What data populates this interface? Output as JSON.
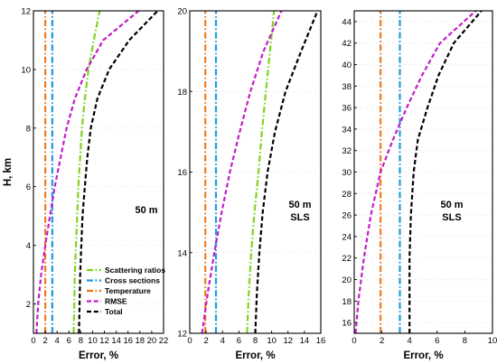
{
  "chart_data": [
    {
      "type": "line",
      "xlabel": "Error, %",
      "ylabel": "H, km",
      "xlim": [
        0,
        22
      ],
      "ylim": [
        1,
        12
      ],
      "xticks": [
        0,
        2,
        4,
        6,
        8,
        10,
        12,
        14,
        16,
        18,
        20,
        22
      ],
      "yticks": [
        2,
        4,
        6,
        8,
        10,
        12
      ],
      "annotation": [
        "50 m"
      ],
      "legend": {
        "position": "bottom-right",
        "entries": [
          "Scattering ratios",
          "Cross sections",
          "Temperature",
          "RMSE",
          "Total"
        ]
      },
      "series": [
        {
          "name": "Scattering ratios",
          "color": "#7FD41E",
          "dash": "dashdot",
          "points": [
            [
              6.8,
              1
            ],
            [
              6.9,
              2
            ],
            [
              7.0,
              3
            ],
            [
              7.2,
              4
            ],
            [
              7.4,
              5
            ],
            [
              7.6,
              6
            ],
            [
              7.9,
              7
            ],
            [
              8.2,
              8
            ],
            [
              8.7,
              9
            ],
            [
              9.3,
              10
            ],
            [
              10.2,
              11
            ],
            [
              11.2,
              12
            ]
          ]
        },
        {
          "name": "Cross sections",
          "color": "#1E9BE0",
          "dash": "dashdot",
          "points": [
            [
              3.2,
              1
            ],
            [
              3.2,
              12
            ]
          ]
        },
        {
          "name": "Temperature",
          "color": "#F07A1E",
          "dash": "dashdot",
          "points": [
            [
              2.0,
              1
            ],
            [
              2.0,
              12
            ]
          ]
        },
        {
          "name": "RMSE",
          "color": "#C21EC8",
          "dash": "dash",
          "points": [
            [
              0.5,
              1
            ],
            [
              0.8,
              2
            ],
            [
              1.3,
              3
            ],
            [
              2.0,
              4
            ],
            [
              2.8,
              5
            ],
            [
              3.6,
              6
            ],
            [
              4.6,
              7
            ],
            [
              5.6,
              8
            ],
            [
              7.0,
              9
            ],
            [
              9.0,
              10
            ],
            [
              11.8,
              11
            ],
            [
              17.8,
              12
            ]
          ]
        },
        {
          "name": "Total",
          "color": "#000000",
          "dash": "dash",
          "points": [
            [
              7.7,
              1
            ],
            [
              7.8,
              2
            ],
            [
              7.9,
              3
            ],
            [
              8.1,
              4
            ],
            [
              8.3,
              5
            ],
            [
              8.7,
              6
            ],
            [
              9.1,
              7
            ],
            [
              9.7,
              8
            ],
            [
              10.8,
              9
            ],
            [
              12.8,
              10
            ],
            [
              16.2,
              11
            ],
            [
              21.0,
              12
            ]
          ]
        }
      ]
    },
    {
      "type": "line",
      "xlabel": "Error, %",
      "ylabel": "",
      "xlim": [
        0,
        16
      ],
      "ylim": [
        12,
        20
      ],
      "xticks": [
        0,
        2,
        4,
        6,
        8,
        10,
        12,
        14,
        16
      ],
      "yticks": [
        12,
        14,
        16,
        18,
        20
      ],
      "annotation": [
        "50 m",
        "SLS"
      ],
      "series": [
        {
          "name": "Scattering ratios",
          "color": "#7FD41E",
          "dash": "dashdot",
          "points": [
            [
              7.0,
              12
            ],
            [
              7.2,
              13
            ],
            [
              7.5,
              14
            ],
            [
              7.9,
              15
            ],
            [
              8.4,
              16
            ],
            [
              8.8,
              17
            ],
            [
              9.3,
              18
            ],
            [
              9.8,
              19
            ],
            [
              10.3,
              20
            ]
          ]
        },
        {
          "name": "Cross sections",
          "color": "#1E9BE0",
          "dash": "dashdot",
          "points": [
            [
              3.2,
              12
            ],
            [
              3.2,
              20
            ]
          ]
        },
        {
          "name": "Temperature",
          "color": "#F07A1E",
          "dash": "dashdot",
          "points": [
            [
              1.9,
              12
            ],
            [
              1.9,
              20
            ]
          ]
        },
        {
          "name": "RMSE",
          "color": "#C21EC8",
          "dash": "dash",
          "points": [
            [
              1.5,
              12
            ],
            [
              2.2,
              13
            ],
            [
              3.0,
              14
            ],
            [
              3.9,
              15
            ],
            [
              4.9,
              16
            ],
            [
              6.1,
              17
            ],
            [
              7.4,
              18
            ],
            [
              9.0,
              19
            ],
            [
              11.2,
              20
            ]
          ]
        },
        {
          "name": "Total",
          "color": "#000000",
          "dash": "dash",
          "points": [
            [
              8.0,
              12
            ],
            [
              8.2,
              13
            ],
            [
              8.5,
              14
            ],
            [
              8.9,
              15
            ],
            [
              9.5,
              16
            ],
            [
              10.4,
              17
            ],
            [
              11.7,
              18
            ],
            [
              13.6,
              19
            ],
            [
              15.6,
              20
            ]
          ]
        }
      ]
    },
    {
      "type": "line",
      "xlabel": "Error, %",
      "ylabel": "",
      "xlim": [
        0,
        10
      ],
      "ylim": [
        15,
        45
      ],
      "xticks": [
        0,
        2,
        4,
        6,
        8,
        10
      ],
      "yticks": [
        16,
        18,
        20,
        22,
        24,
        26,
        28,
        30,
        32,
        34,
        36,
        38,
        40,
        42,
        44
      ],
      "annotation": [
        "50 m",
        "SLS"
      ],
      "series": [
        {
          "name": "Cross sections",
          "color": "#1E9BE0",
          "dash": "dashdot",
          "points": [
            [
              3.3,
              15
            ],
            [
              3.3,
              45
            ]
          ]
        },
        {
          "name": "Temperature",
          "color": "#F07A1E",
          "dash": "dashdot",
          "points": [
            [
              1.9,
              15
            ],
            [
              1.9,
              45
            ]
          ]
        },
        {
          "name": "RMSE",
          "color": "#C21EC8",
          "dash": "dash",
          "points": [
            [
              0.1,
              15
            ],
            [
              0.3,
              18
            ],
            [
              0.7,
              22
            ],
            [
              1.2,
              26
            ],
            [
              1.9,
              30
            ],
            [
              2.8,
              33
            ],
            [
              3.8,
              36
            ],
            [
              4.9,
              39
            ],
            [
              6.2,
              42
            ],
            [
              8.8,
              45
            ]
          ]
        },
        {
          "name": "Total",
          "color": "#000000",
          "dash": "dash",
          "points": [
            [
              4.0,
              15
            ],
            [
              4.0,
              18
            ],
            [
              4.0,
              22
            ],
            [
              4.1,
              26
            ],
            [
              4.3,
              30
            ],
            [
              4.6,
              33
            ],
            [
              5.3,
              36
            ],
            [
              6.1,
              39
            ],
            [
              7.2,
              42
            ],
            [
              9.2,
              45
            ]
          ]
        }
      ]
    }
  ]
}
